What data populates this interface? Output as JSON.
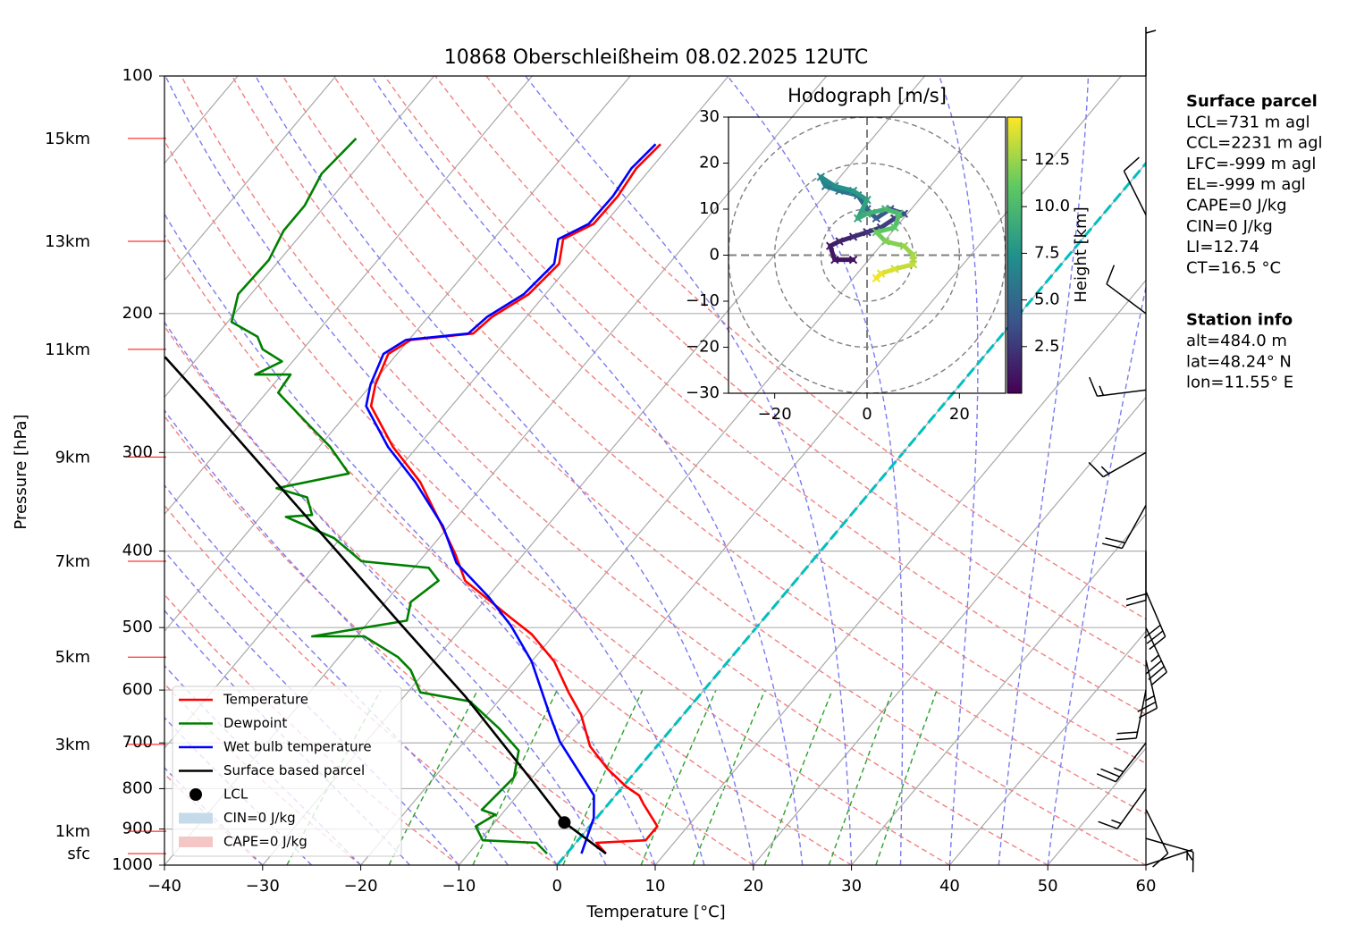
{
  "chart_data": {
    "type": "skewt",
    "title": "10868 Oberschleißheim 08.02.2025 12UTC",
    "x_label": "Temperature [°C]",
    "y_label": "Pressure [hPa]",
    "xlim": [
      -40,
      60
    ],
    "xticks": [
      {
        "value": -40,
        "label": "−40"
      },
      {
        "value": -30,
        "label": "−30"
      },
      {
        "value": -20,
        "label": "−20"
      },
      {
        "value": -10,
        "label": "−10"
      },
      0,
      10,
      20,
      30,
      40,
      50,
      60
    ],
    "ylim": [
      1000,
      100
    ],
    "yticks": [
      100,
      200,
      300,
      400,
      500,
      600,
      700,
      800,
      900,
      1000
    ],
    "log_y": true,
    "grid": true,
    "legend": "lower left",
    "isotherms": {
      "color": "#a8a8a8",
      "values": [
        -110,
        -100,
        -90,
        -80,
        -70,
        -60,
        -50,
        -40,
        -30,
        -20,
        -10,
        0,
        10,
        20,
        30,
        40,
        50,
        60
      ]
    },
    "zero_isotherm": {
      "value": 0,
      "color": "#00bfbf"
    },
    "dry_adiabats": {
      "color": "#f08080",
      "values": [
        -30,
        -20,
        -10,
        0,
        10,
        20,
        30,
        40,
        50,
        60,
        70,
        80,
        90,
        100,
        110
      ]
    },
    "moist_adiabats": {
      "color": "#7b7bf0",
      "values": [
        -30,
        -25,
        -20,
        -15,
        -10,
        -5,
        0,
        5,
        10,
        15,
        20,
        25,
        30,
        35,
        40,
        45,
        50
      ]
    },
    "mixing_ratio_lines": {
      "color": "#2ca02c",
      "top_pressure": 600,
      "values": [
        0.0004,
        0.001,
        0.002,
        0.004,
        0.007,
        0.01,
        0.016,
        0.024,
        0.032
      ]
    },
    "series": [
      {
        "name": "Temperature",
        "color": "#ff0000",
        "pressure": [
          967,
          937,
          930,
          893,
          837,
          816,
          795,
          755,
          707,
          645,
          604,
          552,
          510,
          485,
          436,
          404,
          364,
          327,
          295,
          262,
          246,
          225,
          216,
          212,
          202,
          189,
          173,
          161,
          154,
          142,
          131,
          122
        ],
        "temperature": [
          4.0,
          2.1,
          6.9,
          6.9,
          3.6,
          2.4,
          0.3,
          -3.1,
          -6.8,
          -10.4,
          -13.6,
          -17.7,
          -22.3,
          -26.0,
          -33.7,
          -36.9,
          -41.7,
          -46.7,
          -52.5,
          -58.2,
          -59.6,
          -60.9,
          -59.8,
          -54.0,
          -53.5,
          -51.7,
          -51.2,
          -52.9,
          -51.1,
          -51.0,
          -51.5,
          -51.1
        ]
      },
      {
        "name": "Dewpoint",
        "color": "#008000",
        "pressure": [
          967,
          937,
          930,
          893,
          863,
          851,
          774,
          716,
          672,
          620,
          604,
          566,
          545,
          513,
          513,
          490,
          464,
          436,
          420,
          412,
          385,
          362,
          360,
          342,
          333,
          319,
          295,
          273,
          252,
          239,
          239,
          230,
          222,
          214,
          205,
          189,
          171,
          157,
          146,
          133,
          120
        ],
        "temperature": [
          -2.0,
          -4.0,
          -9.7,
          -11.6,
          -10.6,
          -12.4,
          -11.9,
          -13.7,
          -17.5,
          -22.9,
          -28.7,
          -31.6,
          -34.0,
          -39.2,
          -44.5,
          -36.2,
          -37.4,
          -36.4,
          -38.5,
          -45.9,
          -50.7,
          -57.4,
          -54.9,
          -56.9,
          -60.8,
          -54.7,
          -58.9,
          -63.8,
          -68.8,
          -69.1,
          -72.7,
          -71.1,
          -74.1,
          -75.7,
          -79.6,
          -81.3,
          -81.1,
          -82.1,
          -82.1,
          -83.1,
          -82.6
        ]
      },
      {
        "name": "Wet bulb temperature",
        "color": "#0000ff",
        "pressure": [
          967,
          871,
          816,
          697,
          645,
          552,
          497,
          458,
          414,
          372,
          327,
          295,
          262,
          246,
          225,
          216,
          212,
          202,
          189,
          173,
          161,
          154,
          142,
          131,
          122
        ],
        "temperature": [
          1.5,
          -0.3,
          -2.2,
          -10.3,
          -13.6,
          -20.0,
          -25.2,
          -29.8,
          -36.1,
          -40.6,
          -47.2,
          -53.0,
          -58.7,
          -60.1,
          -61.4,
          -60.3,
          -54.5,
          -54.0,
          -52.2,
          -51.7,
          -53.4,
          -51.6,
          -51.5,
          -52.0,
          -51.6
        ]
      },
      {
        "name": "Surface based parcel",
        "color": "#000000",
        "pressure": [
          967,
          883,
          795,
          697,
          611,
          497,
          404,
          319,
          259,
          227
        ],
        "temperature": [
          4.0,
          -2.9,
          -8.8,
          -16.3,
          -23.8,
          -36.3,
          -48.7,
          -62.9,
          -75.4,
          -83.4
        ]
      }
    ],
    "lcl": {
      "name": "LCL",
      "color": "#000000",
      "pressure": 883,
      "temperature": -2.9
    },
    "shading": [
      {
        "name": "CIN=0 J/kg",
        "color": "#c6dbea"
      },
      {
        "name": "CAPE=0 J/kg",
        "color": "#f5c6c6"
      }
    ],
    "height_labels": {
      "color": "#ff0000",
      "labels": [
        "15km",
        "13km",
        "11km",
        "9km",
        "7km",
        "5km",
        "3km",
        "1km",
        "sfc"
      ],
      "pressure": [
        120,
        162,
        222,
        304,
        412,
        545,
        703,
        906,
        967
      ]
    },
    "wind_barbs": {
      "pressure": [
        1000,
        925,
        850,
        800,
        700,
        600,
        550,
        500,
        450,
        400,
        350,
        300,
        250,
        200,
        150,
        100
      ],
      "u": [
        -6,
        -14,
        -4,
        10,
        14,
        4,
        -6,
        -14,
        -12,
        0,
        10,
        14,
        16,
        8,
        4,
        0
      ],
      "v": [
        -2,
        4,
        8,
        14,
        18,
        20,
        26,
        30,
        28,
        22,
        18,
        8,
        2,
        -6,
        -8,
        -4
      ]
    },
    "info_panels": [
      {
        "title": "Surface parcel",
        "lines": [
          "LCL=731 m agl",
          "CCL=2231 m agl",
          "LFC=-999 m agl",
          "EL=-999 m agl",
          "CAPE=0 J/kg",
          "CIN=0 J/kg",
          "LI=12.74",
          "CT=16.5 °C"
        ]
      },
      {
        "title": "Station info",
        "lines": [
          "alt=484.0 m",
          "lat=48.24° N",
          "lon=11.55° E"
        ]
      }
    ],
    "hodograph": {
      "title": "Hodograph [m/s]",
      "xlim": [
        -30,
        30
      ],
      "ylim": [
        -30,
        30
      ],
      "xticks": [
        {
          "value": -20,
          "label": "−20"
        },
        0,
        20
      ],
      "yticks": [
        {
          "value": -30,
          "label": "−30"
        },
        {
          "value": -20,
          "label": "−20"
        },
        {
          "value": -10,
          "label": "−10"
        },
        0,
        10,
        20,
        30
      ],
      "rings": [
        10,
        20,
        30
      ],
      "colorbar_label": "Height [km]",
      "clim": [
        0,
        14.8
      ],
      "cticks": [
        2.5,
        {
          "value": 5,
          "label": "5.0"
        },
        7.5,
        {
          "value": 10,
          "label": "10.0"
        },
        12.5
      ],
      "height": [
        0.5,
        0.8,
        1.0,
        1.3,
        1.6,
        2.0,
        2.4,
        2.8,
        3.2,
        3.6,
        4.0,
        4.5,
        5.0,
        5.5,
        6.0,
        6.5,
        7.0,
        7.5,
        8.0,
        8.5,
        9.0,
        9.5,
        10.0,
        10.5,
        11.0,
        11.5,
        12.0,
        12.5,
        13.0,
        13.5,
        14.0,
        14.5
      ],
      "u": [
        -3,
        -7,
        -8,
        -6,
        -3,
        0,
        3,
        6,
        8,
        5,
        2,
        0,
        -2,
        -6,
        -9,
        -10,
        -7,
        -3,
        0,
        -2,
        0,
        4,
        7,
        6,
        2,
        4,
        8,
        10,
        10,
        6,
        3,
        2
      ],
      "v": [
        -1,
        -1,
        2,
        3,
        4,
        5,
        6,
        8,
        9,
        10,
        8,
        10,
        13,
        14,
        15,
        17,
        15,
        14,
        12,
        8,
        9,
        10,
        9,
        6,
        5,
        3,
        2,
        0,
        -2,
        -3,
        -4,
        -5
      ]
    }
  }
}
